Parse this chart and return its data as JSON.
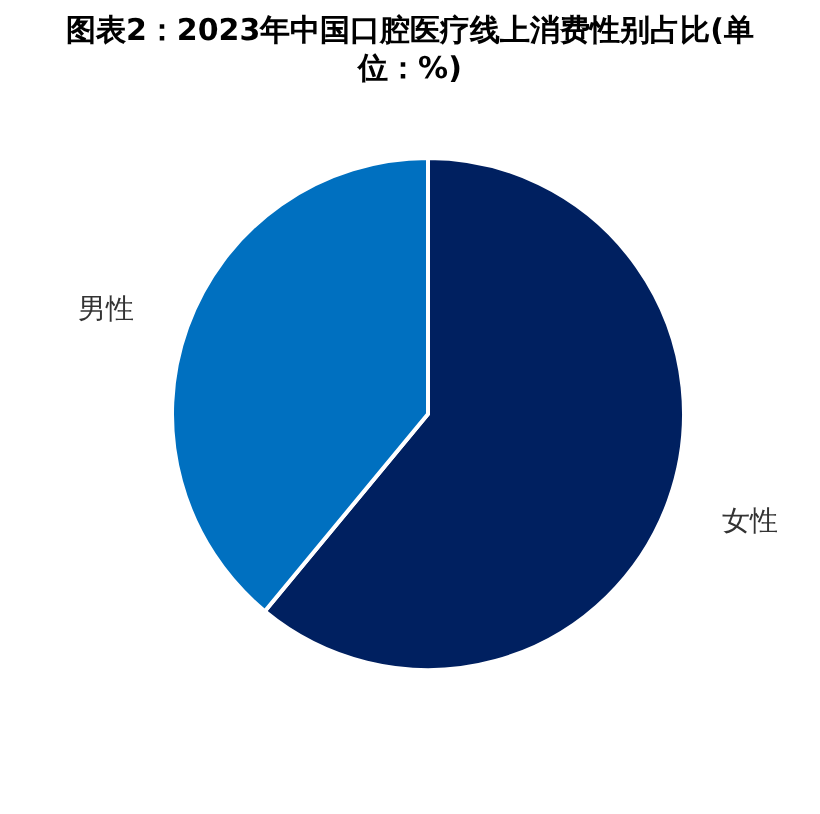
{
  "chart_data": {
    "type": "pie",
    "title": "图表2：2023年中国口腔医疗线上消费性别占比(单位：%)",
    "categories": [
      "女性",
      "男性"
    ],
    "values": [
      61,
      39
    ],
    "colors": [
      "#002060",
      "#0070c0"
    ]
  }
}
